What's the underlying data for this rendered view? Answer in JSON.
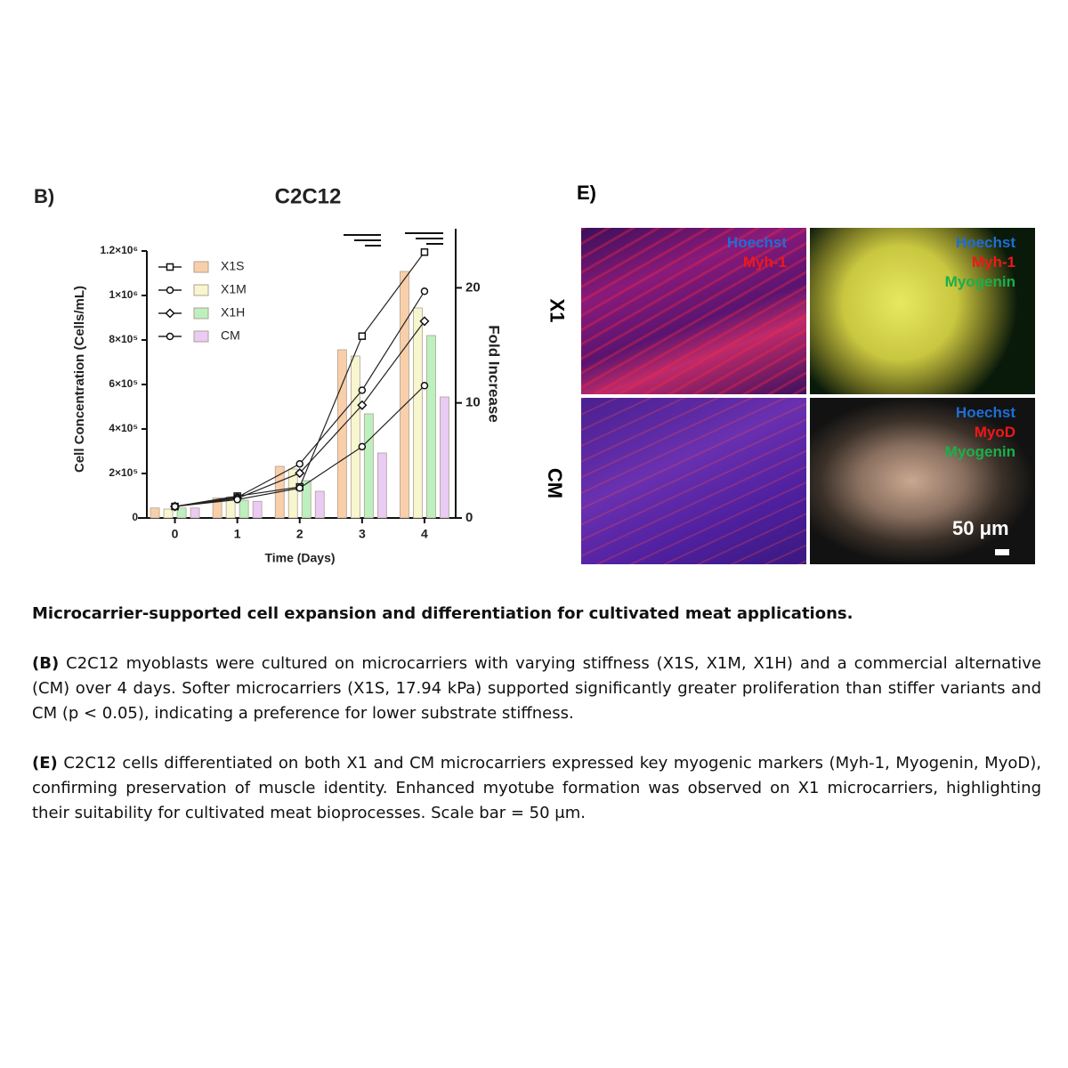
{
  "chart_data": {
    "type": "bar",
    "panel_label": "B)",
    "title": "C2C12",
    "x_label": "Time (Days)",
    "y_label": "Cell Concentration (Cells/mL)",
    "y2_label": "Fold Increase",
    "x": [
      0,
      1,
      2,
      3,
      4
    ],
    "xlim": [
      -0.45,
      4.5
    ],
    "xticks": [
      0,
      1,
      2,
      3,
      4
    ],
    "ylim": [
      0,
      1200000
    ],
    "yticks": [
      0,
      {
        "value": 200000,
        "label": "2×10⁵"
      },
      {
        "value": 400000,
        "label": "4×10⁵"
      },
      {
        "value": 600000,
        "label": "6×10⁵"
      },
      {
        "value": 800000,
        "label": "8×10⁵"
      },
      {
        "value": 1000000,
        "label": "1×10⁶"
      },
      {
        "value": 1200000,
        "label": "1.2×10⁶"
      }
    ],
    "y2lim": [
      0,
      23.2
    ],
    "y2ticks": [
      0,
      10,
      20
    ],
    "series": [
      {
        "name": "X1S",
        "color": "#f9cfaa",
        "marker": "square",
        "values": [
          45000,
          90000,
          232000,
          756000,
          1108000
        ],
        "fold_values": [
          1,
          1.9,
          2.7,
          15.8,
          23.1
        ]
      },
      {
        "name": "X1M",
        "color": "#f8f6cf",
        "marker": "circle",
        "values": [
          40000,
          95000,
          220000,
          728000,
          944000
        ],
        "fold_values": [
          1,
          1.8,
          4.7,
          11.1,
          19.7
        ]
      },
      {
        "name": "X1H",
        "color": "#bdf0bf",
        "marker": "diamond",
        "values": [
          45000,
          80000,
          168000,
          468000,
          820000
        ],
        "fold_values": [
          1,
          1.7,
          3.9,
          9.8,
          17.1
        ]
      },
      {
        "name": "CM",
        "color": "#e9cbf4",
        "marker": "circle",
        "values": [
          45000,
          75000,
          120000,
          292000,
          544000
        ],
        "fold_values": [
          1,
          1.6,
          2.6,
          6.2,
          11.5
        ]
      }
    ]
  },
  "panel_e": {
    "label": "E)",
    "rows": [
      "X1",
      "CM"
    ],
    "images": [
      {
        "labels": [
          "Hoechst",
          "Myh-1"
        ]
      },
      {
        "labels": [
          "Hoechst",
          "Myh-1",
          "Myogenin"
        ]
      },
      {
        "labels": []
      },
      {
        "labels": [
          "Hoechst",
          "MyoD",
          "Myogenin"
        ]
      }
    ],
    "scale_bar": "50 μm"
  },
  "caption": {
    "title": "Microcarrier-supported cell expansion and differentiation for cultivated meat applications.",
    "paragraphs": [
      {
        "label": "(B)",
        "text": "C2C12 myoblasts were cultured on microcarriers with varying stiffness (X1S, X1M, X1H) and a commercial alternative (CM) over 4 days. Softer microcarriers (X1S, 17.94 kPa) supported significantly greater proliferation than stiffer variants and CM (p < 0.05), indicating a preference for lower substrate stiffness."
      },
      {
        "label": "(E)",
        "text": "C2C12 cells differentiated on both X1 and CM microcarriers expressed key myogenic markers (Myh-1, Myogenin, MyoD), confirming preservation of muscle identity. Enhanced myotube formation was observed on X1 microcarriers, highlighting their suitability for cultivated meat bioprocesses. Scale bar = 50 μm."
      }
    ]
  }
}
